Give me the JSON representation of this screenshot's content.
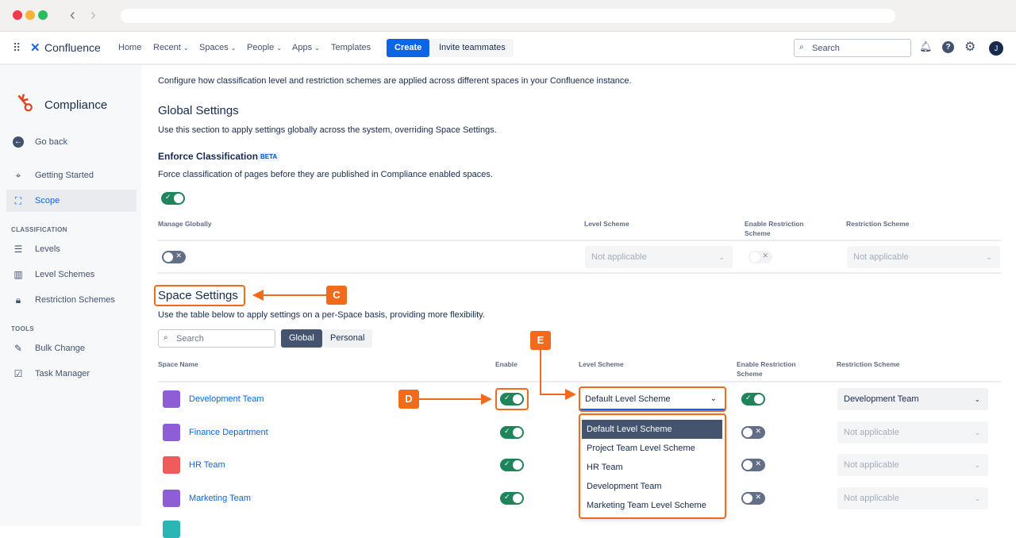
{
  "nav": {
    "product": "Confluence",
    "items": [
      "Home",
      "Recent",
      "Spaces",
      "People",
      "Apps",
      "Templates"
    ],
    "create": "Create",
    "invite": "Invite teammates",
    "search_placeholder": "Search",
    "avatar_initial": "J"
  },
  "sidebar": {
    "app_title": "Compliance",
    "go_back": "Go back",
    "items": [
      "Getting Started",
      "Scope"
    ],
    "classification_heading": "CLASSIFICATION",
    "classification_items": [
      "Levels",
      "Level Schemes",
      "Restriction Schemes"
    ],
    "tools_heading": "TOOLS",
    "tools_items": [
      "Bulk Change",
      "Task Manager"
    ],
    "active": "Scope"
  },
  "main": {
    "intro": "Configure how classification level and restriction schemes are applied across different spaces in your Confluence instance.",
    "global_title": "Global Settings",
    "global_desc": "Use this section to apply settings globally across the system, overriding Space Settings.",
    "enforce_title": "Enforce Classification",
    "beta": "BETA",
    "enforce_desc": "Force classification of pages before they are published in Compliance enabled spaces.",
    "enforce_on": true,
    "global_headers": [
      "Manage Globally",
      "Level Scheme",
      "Enable Restriction Scheme",
      "Restriction Scheme"
    ],
    "global_row": {
      "manage": false,
      "level": "Not applicable",
      "restriction_enabled": false,
      "restriction": "Not applicable"
    },
    "space_title": "Space Settings",
    "space_desc": "Use the table below to apply settings on a per-Space basis, providing more flexibility.",
    "search_placeholder": "Search",
    "filters": [
      "Global",
      "Personal"
    ],
    "active_filter": "Global",
    "space_headers": [
      "Space Name",
      "Enable",
      "Level Scheme",
      "Enable Restriction Scheme",
      "Restriction Scheme"
    ],
    "rows": [
      {
        "name": "Development Team",
        "enabled": true,
        "level": "Default Level Scheme",
        "restriction_enabled": true,
        "restriction": "Development Team",
        "color": "#8f5ed6"
      },
      {
        "name": "Finance Department",
        "enabled": true,
        "level": "",
        "restriction_enabled": false,
        "restriction": "Not applicable",
        "color": "#8f5ed6"
      },
      {
        "name": "HR Team",
        "enabled": true,
        "level": "",
        "restriction_enabled": false,
        "restriction": "Not applicable",
        "color": "#f15b5b"
      },
      {
        "name": "Marketing Team",
        "enabled": true,
        "level": "",
        "restriction_enabled": false,
        "restriction": "Not applicable",
        "color": "#8f5ed6"
      }
    ],
    "dropdown_options": [
      "Default Level Scheme",
      "Project Team Level Scheme",
      "HR Team",
      "Development Team",
      "Marketing Team Level Scheme"
    ],
    "dropdown_selected": "Default Level Scheme"
  },
  "annotations": {
    "c": "C",
    "d": "D",
    "e": "E",
    "color": "#f26a1b"
  }
}
